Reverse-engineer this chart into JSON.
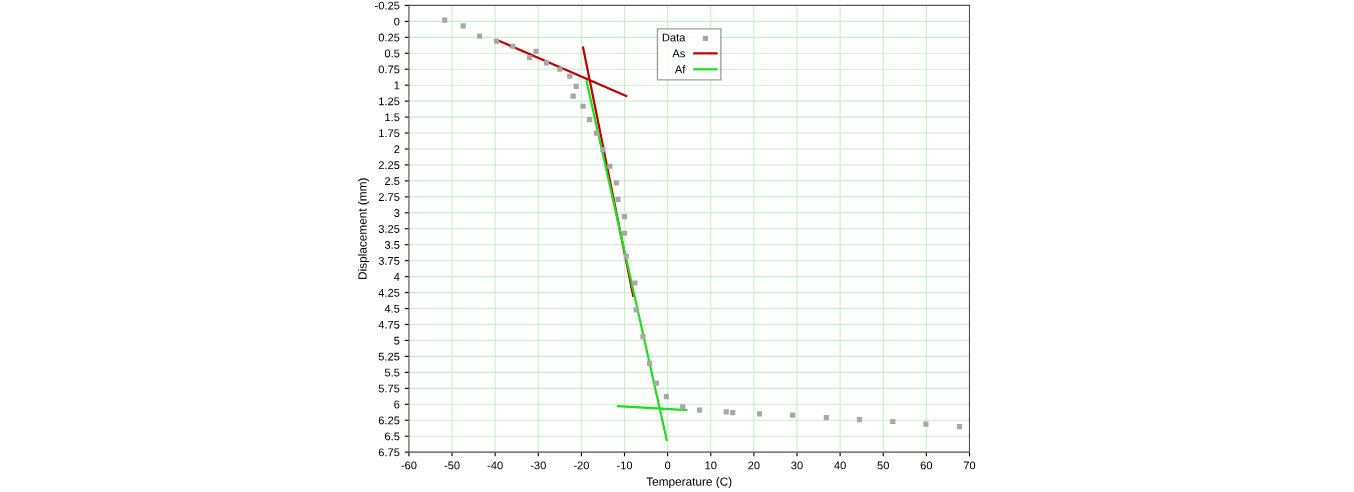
{
  "chart_data": {
    "type": "scatter",
    "xlabel": "Temperature (C)",
    "ylabel": "Displacement (mm)",
    "xlim": [
      -60,
      70
    ],
    "xticks": [
      -60,
      -50,
      -40,
      -30,
      -20,
      -10,
      0,
      10,
      20,
      30,
      40,
      50,
      60,
      70
    ],
    "ylim": [
      6.75,
      -0.25
    ],
    "yticks": [
      -0.25,
      0,
      0.25,
      0.5,
      0.75,
      1,
      1.25,
      1.5,
      1.75,
      2,
      2.25,
      2.5,
      2.75,
      3,
      3.25,
      3.5,
      3.75,
      4,
      4.25,
      4.5,
      4.75,
      5,
      5.25,
      5.5,
      5.75,
      6,
      6.25,
      6.5,
      6.75
    ],
    "grid": true,
    "legend": "top",
    "series": [
      {
        "name": "Data",
        "marker": "square",
        "color": "#a8a8a8",
        "x": [
          -51.7,
          -47.4,
          -43.6,
          -39.7,
          -35.9,
          -30.5,
          -32.0,
          -28.1,
          -25.0,
          -22.7,
          -21.2,
          -21.9,
          -19.6,
          -18.1,
          -16.5,
          -15.0,
          -13.4,
          -11.9,
          -11.5,
          -10.0,
          -10.0,
          -9.6,
          -7.6,
          -7.3,
          -5.7,
          -4.2,
          -2.6,
          -0.3,
          3.5,
          7.4,
          13.6,
          15.1,
          21.3,
          29.0,
          36.8,
          44.5,
          52.2,
          59.9,
          67.7
        ],
        "values": [
          -0.02,
          0.07,
          0.23,
          0.31,
          0.39,
          0.47,
          0.57,
          0.65,
          0.75,
          0.86,
          1.02,
          1.17,
          1.33,
          1.54,
          1.75,
          2.01,
          2.27,
          2.53,
          2.79,
          3.06,
          3.32,
          3.68,
          4.1,
          4.52,
          4.94,
          5.36,
          5.67,
          5.88,
          6.04,
          6.09,
          6.12,
          6.13,
          6.15,
          6.17,
          6.21,
          6.24,
          6.27,
          6.31,
          6.35
        ]
      },
      {
        "name": "As",
        "type": "line",
        "line_style": "solid",
        "color": "#c00000",
        "x": [
          -38.9,
          -9.6,
          -15.0,
          -19.6,
          -8.0
        ],
        "values": [
          0.31,
          1.17,
          null,
          0.41,
          4.3
        ]
      },
      {
        "name": "Af",
        "type": "line",
        "line_style": "solid",
        "color": "#22dd22",
        "x": [
          -18.8,
          -0.2,
          -5.0,
          -11.5,
          4.3
        ],
        "values": [
          0.94,
          6.56,
          null,
          6.03,
          6.09
        ]
      }
    ]
  }
}
